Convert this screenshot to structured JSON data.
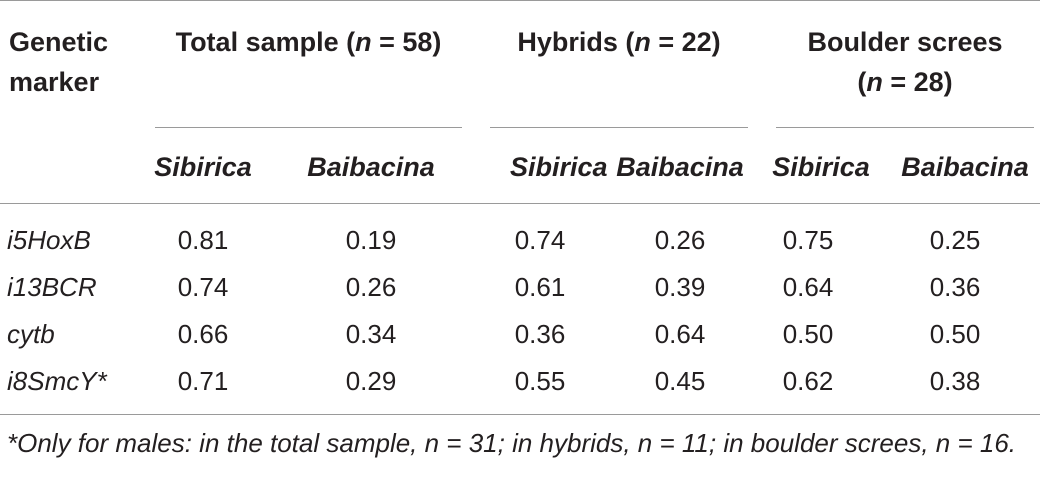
{
  "table": {
    "col_marker_header": [
      "Genetic",
      "marker"
    ],
    "groups": [
      {
        "label": "Total sample (",
        "n_symbol": "n",
        "n_rest": " = 58)"
      },
      {
        "label": "Hybrids (",
        "n_symbol": "n",
        "n_rest": " = 22)"
      },
      {
        "label": "Boulder screes",
        "n_prefix": "(",
        "n_symbol": "n",
        "n_rest": " = 28)"
      }
    ],
    "subheaders": [
      "Sibirica",
      "Baibacina",
      "Sibirica",
      "Baibacina",
      "Sibirica",
      "Baibacina"
    ],
    "rows": [
      {
        "marker": "i5HoxB",
        "values": [
          "0.81",
          "0.19",
          "0.74",
          "0.26",
          "0.75",
          "0.25"
        ]
      },
      {
        "marker": "i13BCR",
        "values": [
          "0.74",
          "0.26",
          "0.61",
          "0.39",
          "0.64",
          "0.36"
        ]
      },
      {
        "marker": "cytb",
        "values": [
          "0.66",
          "0.34",
          "0.36",
          "0.64",
          "0.50",
          "0.50"
        ]
      },
      {
        "marker": "i8SmcY*",
        "values": [
          "0.71",
          "0.29",
          "0.55",
          "0.45",
          "0.62",
          "0.38"
        ]
      }
    ]
  },
  "footnote": "*Only for males: in the total sample, n = 31; in hybrids, n = 11; in boulder screes, n = 16."
}
